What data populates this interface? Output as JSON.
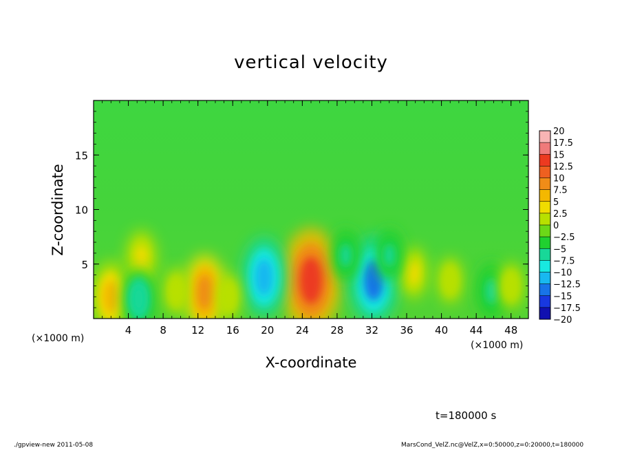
{
  "chart_data": {
    "type": "heatmap",
    "title": "vertical velocity",
    "xlabel": "X-coordinate",
    "ylabel": "Z-coordinate",
    "x_unit_label": "(×1000 m)",
    "xlim": [
      0,
      50
    ],
    "ylim": [
      0,
      20
    ],
    "x_ticks": [
      "4",
      "8",
      "12",
      "16",
      "20",
      "24",
      "28",
      "32",
      "36",
      "40",
      "44",
      "48"
    ],
    "y_ticks": [
      "5",
      "10",
      "15"
    ],
    "colorbar": {
      "levels": [
        "20",
        "17.5",
        "15",
        "12.5",
        "10",
        "7.5",
        "5",
        "2.5",
        "0",
        "−2.5",
        "−5",
        "−7.5",
        "−10",
        "−12.5",
        "−15",
        "−17.5",
        "−20"
      ],
      "colors": [
        "#f8b4b4",
        "#f07a7a",
        "#ec3a20",
        "#ee6020",
        "#f08c18",
        "#f4b800",
        "#f0dc00",
        "#b8e000",
        "#6cd818",
        "#20d030",
        "#18d898",
        "#18e8e0",
        "#18b8f0",
        "#1874e8",
        "#1838e0",
        "#1010b0",
        "#6418b8"
      ]
    },
    "features": [
      {
        "x": 25,
        "z": 3.5,
        "value": 15
      },
      {
        "x": 32.2,
        "z": 3.5,
        "value": -12
      },
      {
        "x": 19.6,
        "z": 3.8,
        "value": -10
      },
      {
        "x": 12.8,
        "z": 2.4,
        "value": 9
      },
      {
        "x": 2.0,
        "z": 2.0,
        "value": 8
      },
      {
        "x": 5.5,
        "z": 5.5,
        "value": 5
      },
      {
        "x": 36.8,
        "z": 4.2,
        "value": 4
      },
      {
        "x": 5.2,
        "z": 1.8,
        "value": -6
      },
      {
        "x": 45.8,
        "z": 2.5,
        "value": -5
      },
      {
        "x": 9.5,
        "z": 2.5,
        "value": 3
      },
      {
        "x": 15.5,
        "z": 2.0,
        "value": 3
      },
      {
        "x": 34.0,
        "z": 5.8,
        "value": -4
      },
      {
        "x": 29.0,
        "z": 5.8,
        "value": -4
      },
      {
        "x": 41.0,
        "z": 3.5,
        "value": 3
      },
      {
        "x": 48.0,
        "z": 3.0,
        "value": 3
      }
    ],
    "time_label": "t=180000 s",
    "grid": false,
    "legend": "colorbar-right"
  },
  "footer": {
    "left": "./gpview-new  2011-05-08",
    "right": "MarsCond_VelZ.nc@VelZ,x=0:50000,z=0:20000,t=180000"
  }
}
